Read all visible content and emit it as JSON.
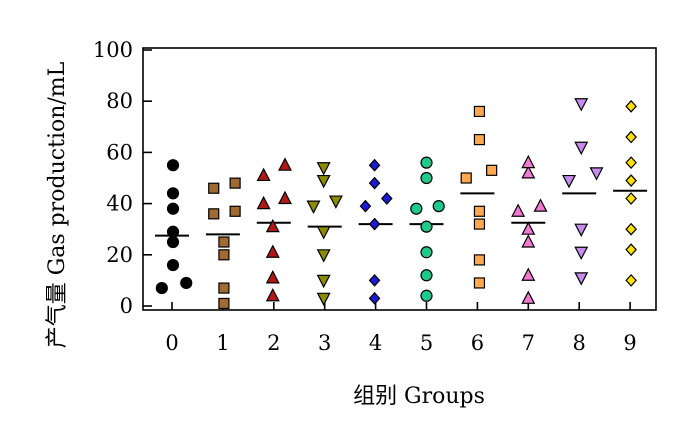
{
  "chart_data": {
    "type": "scatter",
    "xlabel": "组别 Groups",
    "ylabel": "产气量 Gas production/mL",
    "categories": [
      "0",
      "1",
      "2",
      "3",
      "4",
      "5",
      "6",
      "7",
      "8",
      "9"
    ],
    "ylim": [
      0,
      100
    ],
    "yticks": [
      0,
      20,
      40,
      60,
      80,
      100
    ],
    "grid": false,
    "legend": "none",
    "series": [
      {
        "category": "0",
        "marker": "circle",
        "color": "#000000",
        "points": [
          [
            -0.2,
            7
          ],
          [
            0.28,
            9
          ],
          [
            0.02,
            16
          ],
          [
            0.02,
            25
          ],
          [
            0.02,
            29
          ],
          [
            0.02,
            38
          ],
          [
            0.02,
            44
          ],
          [
            0.02,
            55
          ]
        ],
        "mean": 27.5
      },
      {
        "category": "1",
        "marker": "square",
        "color": "#a06a30",
        "points": [
          [
            0.02,
            1
          ],
          [
            0.02,
            7
          ],
          [
            0.02,
            20
          ],
          [
            0.02,
            25
          ],
          [
            -0.18,
            36
          ],
          [
            0.24,
            37
          ],
          [
            -0.18,
            46
          ],
          [
            0.24,
            48
          ]
        ],
        "mean": 28
      },
      {
        "category": "2",
        "marker": "triangle-up",
        "color": "#b01818",
        "points": [
          [
            -0.02,
            4
          ],
          [
            -0.02,
            11
          ],
          [
            -0.02,
            21
          ],
          [
            -0.02,
            31
          ],
          [
            -0.2,
            40
          ],
          [
            0.22,
            42
          ],
          [
            -0.2,
            51
          ],
          [
            0.22,
            55
          ]
        ],
        "mean": 32.5
      },
      {
        "category": "3",
        "marker": "triangle-down",
        "color": "#8c8c00",
        "points": [
          [
            -0.02,
            3
          ],
          [
            -0.02,
            10
          ],
          [
            -0.02,
            20
          ],
          [
            -0.02,
            29
          ],
          [
            -0.22,
            39
          ],
          [
            0.22,
            41
          ],
          [
            -0.02,
            49
          ],
          [
            -0.02,
            54
          ]
        ],
        "mean": 31
      },
      {
        "category": "4",
        "marker": "diamond",
        "color": "#1a1ad8",
        "points": [
          [
            -0.02,
            3
          ],
          [
            -0.02,
            10
          ],
          [
            -0.02,
            32
          ],
          [
            -0.2,
            39
          ],
          [
            0.22,
            42
          ],
          [
            -0.02,
            48
          ],
          [
            -0.02,
            55
          ]
        ],
        "mean": 32
      },
      {
        "category": "5",
        "marker": "circle",
        "color": "#1fc88c",
        "points": [
          [
            0.0,
            4
          ],
          [
            0.0,
            12
          ],
          [
            0.0,
            21
          ],
          [
            0.0,
            31
          ],
          [
            -0.2,
            38
          ],
          [
            0.24,
            39
          ],
          [
            0.0,
            50
          ],
          [
            0.0,
            56
          ]
        ],
        "mean": 32
      },
      {
        "category": "6",
        "marker": "square",
        "color": "#ffa850",
        "points": [
          [
            0.04,
            9
          ],
          [
            0.04,
            18
          ],
          [
            0.04,
            32
          ],
          [
            0.04,
            37
          ],
          [
            -0.22,
            50
          ],
          [
            0.28,
            53
          ],
          [
            0.04,
            65
          ],
          [
            0.04,
            76
          ]
        ],
        "mean": 44
      },
      {
        "category": "7",
        "marker": "triangle-up",
        "color": "#f07ad0",
        "points": [
          [
            0.0,
            3
          ],
          [
            0.0,
            12
          ],
          [
            0.0,
            25
          ],
          [
            0.0,
            30
          ],
          [
            -0.2,
            37
          ],
          [
            0.24,
            39
          ],
          [
            0.0,
            52
          ],
          [
            0.0,
            56
          ]
        ],
        "mean": 32.5
      },
      {
        "category": "8",
        "marker": "triangle-down",
        "color": "#c88cf0",
        "points": [
          [
            0.04,
            11
          ],
          [
            0.04,
            21
          ],
          [
            0.04,
            30
          ],
          [
            -0.2,
            49
          ],
          [
            0.34,
            52
          ],
          [
            0.04,
            62
          ],
          [
            0.04,
            79
          ]
        ],
        "mean": 44
      },
      {
        "category": "9",
        "marker": "diamond",
        "color": "#ffe000",
        "points": [
          [
            0.02,
            10
          ],
          [
            0.02,
            22
          ],
          [
            0.02,
            30
          ],
          [
            0.02,
            42
          ],
          [
            0.02,
            49
          ],
          [
            0.02,
            56
          ],
          [
            0.02,
            66
          ],
          [
            0.02,
            78
          ]
        ],
        "mean": 45
      }
    ]
  }
}
